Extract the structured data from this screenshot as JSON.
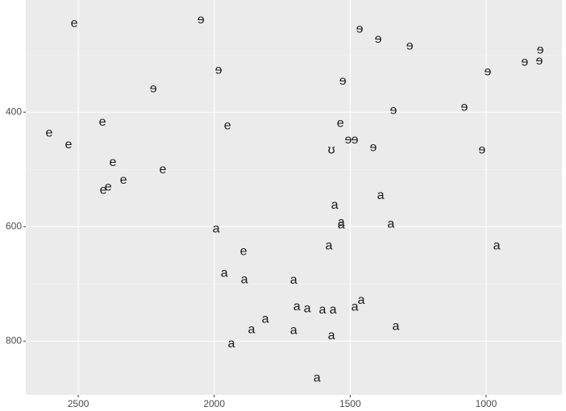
{
  "chart_data": {
    "type": "scatter",
    "x": [
      2515,
      2411,
      2607,
      2536,
      2373,
      2189,
      2334,
      2390,
      2408,
      1951,
      1536,
      1892,
      2049,
      1984,
      2224,
      1465,
      1397,
      1281,
      1527,
      1341,
      1080,
      994,
      858,
      801,
      804,
      1507,
      1483,
      1415,
      1015,
      1569,
      1557,
      1388,
      1533,
      1533,
      1350,
      1578,
      961,
      1993,
      1963,
      1889,
      1708,
      1696,
      1658,
      1602,
      1563,
      1483,
      1459,
      1812,
      1863,
      1708,
      1332,
      1569,
      1937,
      1622
    ],
    "values": [
      245,
      418,
      437,
      457,
      488,
      501,
      519,
      531,
      537,
      424,
      420,
      644,
      239,
      327,
      359,
      255,
      273,
      285,
      346,
      397,
      392,
      330,
      313,
      292,
      311,
      449,
      449,
      462,
      466,
      466,
      563,
      546,
      593,
      597,
      596,
      634,
      634,
      604,
      682,
      693,
      694,
      740,
      744,
      746,
      746,
      741,
      729,
      762,
      780,
      782,
      775,
      791,
      805,
      865
    ],
    "labels": [
      "e",
      "e",
      "e",
      "e",
      "e",
      "e",
      "e",
      "e",
      "e",
      "e",
      "e",
      "e",
      "ɘ",
      "ɘ",
      "ɘ",
      "ɘ",
      "ɘ",
      "ɘ",
      "ɘ",
      "ɘ",
      "ɘ",
      "ɘ",
      "ɘ",
      "ɘ",
      "ɘ",
      "ɘ",
      "ɘ",
      "ɘ",
      "ɘ",
      "ʊ",
      "a",
      "a",
      "a",
      "a",
      "a",
      "a",
      "a",
      "a",
      "a",
      "a",
      "a",
      "a",
      "a",
      "a",
      "a",
      "a",
      "a",
      "a",
      "a",
      "a",
      "a",
      "a",
      "a",
      "a"
    ],
    "xlim": [
      2693,
      721
    ],
    "xticks": [
      2500,
      2000,
      1500,
      1000
    ],
    "ylim": [
      204,
      894
    ],
    "yticks": [
      400,
      600,
      800
    ],
    "grid": true
  }
}
